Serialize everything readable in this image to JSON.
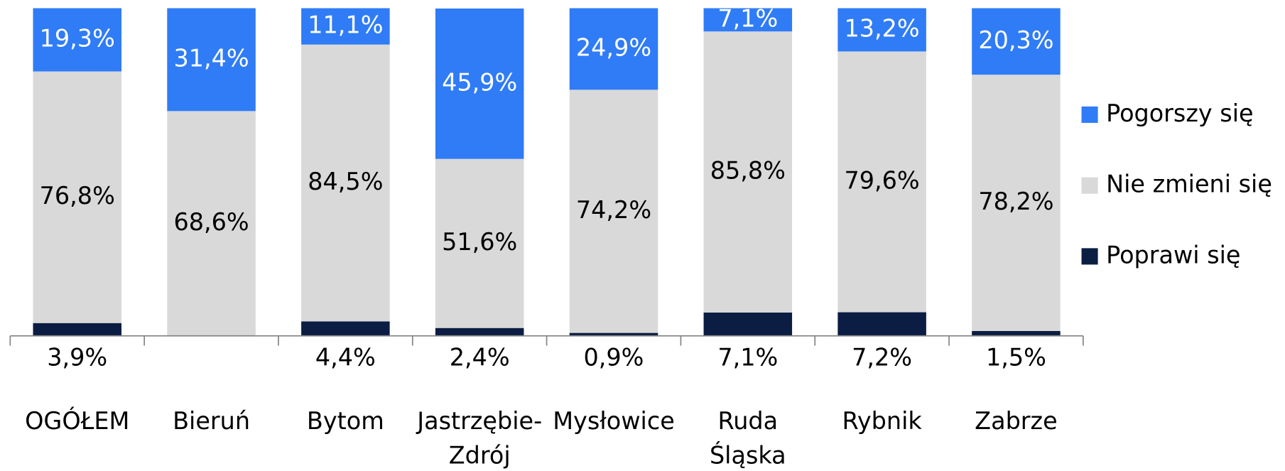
{
  "chart_data": {
    "type": "stacked-bar",
    "categories": [
      "OGÓŁEM",
      "Bieruń",
      "Bytom",
      "Jastrzębie-Zdrój",
      "Mysłowice",
      "Ruda Śląska",
      "Rybnik",
      "Zabrze"
    ],
    "series": [
      {
        "name": "Poprawi się",
        "color": "#0b1d42",
        "values": [
          3.9,
          0,
          4.4,
          2.4,
          0.9,
          7.1,
          7.2,
          1.5
        ],
        "value_labels": [
          "3,9%",
          null,
          "4,4%",
          "2,4%",
          "0,9%",
          "7,1%",
          "7,2%",
          "1,5%"
        ]
      },
      {
        "name": "Nie zmieni się",
        "color": "#d9d9d9",
        "values": [
          76.8,
          68.6,
          84.5,
          51.6,
          74.2,
          85.8,
          79.6,
          78.2
        ],
        "value_labels": [
          "76,8%",
          "68,6%",
          "84,5%",
          "51,6%",
          "74,2%",
          "85,8%",
          "79,6%",
          "78,2%"
        ]
      },
      {
        "name": "Pogorszy się",
        "color": "#2f7cf6",
        "values": [
          19.3,
          31.4,
          11.1,
          45.9,
          24.9,
          7.1,
          13.2,
          20.3
        ],
        "value_labels": [
          "19,3%",
          "31,4%",
          "11,1%",
          "45,9%",
          "24,9%",
          "7,1%",
          "13,2%",
          "20,3%"
        ]
      }
    ],
    "ylim": [
      0,
      100
    ],
    "legend": "right"
  }
}
